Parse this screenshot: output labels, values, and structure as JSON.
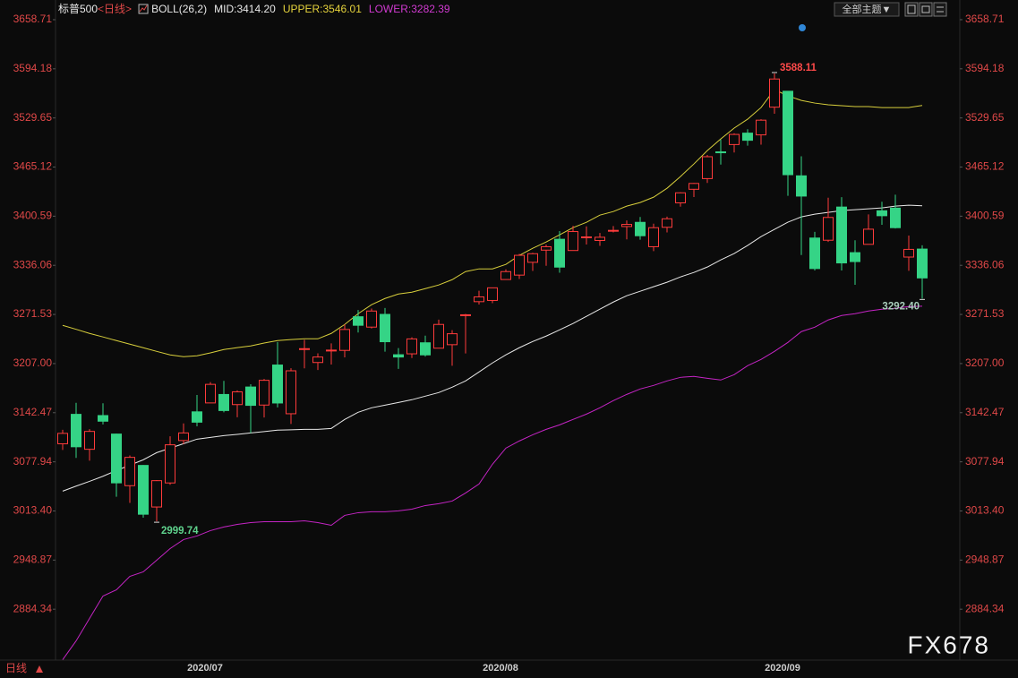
{
  "chart_data": {
    "type": "candlestick",
    "title": "标普500",
    "period": "<日线>",
    "indicator": "BOLL(26,2)",
    "theme_button": "全部主题▼",
    "period_button": "日线",
    "watermark": "FX678",
    "up_color": "#ff3b3b",
    "down_color": "#35d486",
    "categories": [
      null,
      null,
      null,
      null,
      null,
      null,
      null,
      null,
      null,
      "2020/07",
      null,
      null,
      null,
      null,
      null,
      null,
      null,
      null,
      null,
      null,
      null,
      null,
      null,
      null,
      null,
      null,
      null,
      null,
      null,
      null,
      null,
      "2020/08",
      null,
      null,
      null,
      null,
      null,
      null,
      null,
      null,
      null,
      null,
      null,
      null,
      null,
      null,
      null,
      null,
      null,
      null,
      null,
      null,
      "2020/09",
      null,
      null,
      null,
      null,
      null,
      null,
      null,
      null,
      null,
      null,
      null,
      null
    ],
    "candles": {
      "open": [
        3101.6,
        3140.3,
        3094.4,
        3138.7,
        3114.4,
        3046.6,
        3073.2,
        3018.6,
        3050.2,
        3105.9,
        3143.6,
        3155.3,
        3166.4,
        3153.1,
        3176.2,
        3152.5,
        3205.1,
        3141.1,
        3225.98,
        3208.4,
        3224.2,
        3224.3,
        3268.5,
        3254.9,
        3271.6,
        3218.6,
        3219.8,
        3234.3,
        3227.2,
        3231.8,
        3270.5,
        3288.3,
        3289.9,
        3317.4,
        3323.2,
        3340,
        3356,
        3370.3,
        3355.5,
        3372.9,
        3368.7,
        3380.9,
        3387,
        3392.5,
        3360.5,
        3386,
        3418.1,
        3435.95,
        3449.97,
        3485.1,
        3494.7,
        3509.7,
        3507.4,
        3543.8,
        3564.7,
        3453.6,
        3371.9,
        3369,
        3412.6,
        3352.7,
        3363.6,
        3407.7,
        3411.2,
        3346.9,
        3357.4
      ],
      "high": [
        3120,
        3155.5,
        3120.9,
        3154.9,
        3115,
        3086.3,
        3073.7,
        3053.9,
        3111.5,
        3128.4,
        3165.8,
        3182.6,
        3184.2,
        3171.8,
        3179.8,
        3186.8,
        3235.3,
        3200.9,
        3238.3,
        3220.4,
        3233.5,
        3258.6,
        3277.3,
        3279.3,
        3279.99,
        3227.3,
        3241.4,
        3243.7,
        3264.7,
        3250.9,
        3272.2,
        3302.7,
        3306.8,
        3330.8,
        3351,
        3352.5,
        3363.3,
        3381,
        3387.9,
        3387.2,
        3378.5,
        3387.6,
        3395,
        3399.5,
        3390.8,
        3399.96,
        3432.1,
        3444.2,
        3481.1,
        3501.4,
        3509.4,
        3514.8,
        3528,
        3588.11,
        3564.9,
        3479.2,
        3379.97,
        3424.8,
        3425.6,
        3368.95,
        3402.9,
        3419.5,
        3428.9,
        3375.2,
        3362.3
      ],
      "low": [
        3093.5,
        3083.1,
        3079.4,
        3127.1,
        3032.1,
        3024,
        3004.6,
        2999.74,
        3047.8,
        3101.2,
        3124.5,
        3155.3,
        3142.9,
        3136.5,
        3115.7,
        3136.2,
        3149.4,
        3127.7,
        3200.8,
        3198.6,
        3205.7,
        3215.2,
        3247.8,
        3253.1,
        3222.7,
        3200,
        3214.25,
        3216.2,
        3227.2,
        3204.1,
        3220.3,
        3284.5,
        3286.4,
        3317.4,
        3318.1,
        3328.7,
        3335.4,
        3326.4,
        3355.5,
        3363.4,
        3361.6,
        3379.2,
        3370.2,
        3369.7,
        3354.7,
        3379.3,
        3413.1,
        3425.8,
        3444.2,
        3468.4,
        3484.3,
        3493.3,
        3494.6,
        3535.2,
        3427.4,
        3349.6,
        3329.3,
        3366.8,
        3329.3,
        3310.5,
        3363.6,
        3389.25,
        3384.45,
        3328.8,
        3292.4
      ],
      "close": [
        3115.3,
        3097.7,
        3117.9,
        3131.3,
        3050.3,
        3083.8,
        3009.1,
        3053.2,
        3100.3,
        3115.9,
        3130,
        3179.7,
        3145.3,
        3169.9,
        3152.1,
        3185,
        3155.2,
        3197.5,
        3226.6,
        3215.6,
        3224.7,
        3251.8,
        3257.3,
        3276,
        3235.7,
        3215.6,
        3239.4,
        3218.4,
        3258.4,
        3246.2,
        3271.1,
        3294.6,
        3306.5,
        3327.8,
        3349.2,
        3351.3,
        3360.5,
        3333.7,
        3380.4,
        3373.4,
        3372.9,
        3381.99,
        3389.8,
        3374.9,
        3385.5,
        3397.2,
        3431.3,
        3443.6,
        3478.7,
        3484.6,
        3508,
        3500.3,
        3526.7,
        3580.8,
        3455.1,
        3427,
        3331.8,
        3398.96,
        3339.2,
        3340.97,
        3383.5,
        3401.2,
        3385.5,
        3357,
        3319.5
      ]
    },
    "series": [
      {
        "name": "MID:3414.20",
        "color": "#e8e8e8",
        "label_color": "#e8e8e8",
        "values": [
          3039.4,
          3046,
          3052.3,
          3059,
          3066.5,
          3073.5,
          3080.6,
          3090,
          3095.9,
          3101.8,
          3107.7,
          3110,
          3112.4,
          3114,
          3115.9,
          3117.7,
          3119.5,
          3120,
          3120.6,
          3120.6,
          3121.8,
          3133.6,
          3143,
          3148.9,
          3152.4,
          3155.9,
          3159.5,
          3164.2,
          3168.9,
          3176,
          3184.2,
          3196,
          3207.8,
          3218.4,
          3227.8,
          3236,
          3243.1,
          3251.3,
          3259.6,
          3269,
          3278.4,
          3287.8,
          3296.1,
          3302,
          3307.9,
          3313.8,
          3320.8,
          3326.7,
          3333.8,
          3343.2,
          3351.5,
          3362.1,
          3373.8,
          3383.3,
          3392.7,
          3399.7,
          3403.2,
          3405.6,
          3408,
          3409.1,
          3410.3,
          3411.5,
          3413.8,
          3415,
          3414.2
        ]
      },
      {
        "name": "UPPER:3546.01",
        "color": "#d8cf3c",
        "label_color": "#e6d33c",
        "values": [
          3257.2,
          3252,
          3246.6,
          3242,
          3237.2,
          3232.5,
          3227.8,
          3223,
          3218.4,
          3216,
          3217.2,
          3221,
          3225.4,
          3228,
          3230.1,
          3234,
          3237.2,
          3238.5,
          3239.5,
          3239.5,
          3246.6,
          3258.4,
          3272.5,
          3284.3,
          3292.5,
          3298.4,
          3300.7,
          3305.4,
          3310.2,
          3317.2,
          3327.8,
          3331.4,
          3331.4,
          3337.3,
          3349,
          3358.5,
          3366.7,
          3376.1,
          3385.5,
          3392.6,
          3402,
          3406.7,
          3413.8,
          3418.5,
          3425.6,
          3437.3,
          3452.7,
          3469.2,
          3486.8,
          3502.1,
          3516.3,
          3528,
          3543.3,
          3566.9,
          3558.6,
          3552.7,
          3549.2,
          3546.9,
          3545.7,
          3544.5,
          3544.5,
          3543.3,
          3543.3,
          3543.3,
          3546.01
        ]
      },
      {
        "name": "LOWER:3282.39",
        "color": "#c424c4",
        "label_color": "#d03ad0",
        "values": [
          2818,
          2842.7,
          2872.2,
          2901.6,
          2909.8,
          2927.5,
          2933.4,
          2948.7,
          2964,
          2975.8,
          2980.5,
          2987.6,
          2992.3,
          2995.8,
          2998.1,
          2999.3,
          2999.3,
          2999.3,
          3000.5,
          2998.1,
          2994.6,
          3007.6,
          3011.1,
          3012.3,
          3012.3,
          3013.5,
          3015.8,
          3020.5,
          3022.9,
          3026.4,
          3037,
          3048.8,
          3074.7,
          3095.9,
          3105.3,
          3113.5,
          3120.6,
          3126.5,
          3133.6,
          3140.6,
          3148.9,
          3158.3,
          3166.5,
          3173.6,
          3178.3,
          3184.2,
          3188.9,
          3190.1,
          3187.7,
          3185.4,
          3192.4,
          3204.2,
          3212.4,
          3223,
          3234.8,
          3249,
          3254.8,
          3264.3,
          3270.1,
          3272.5,
          3276,
          3278.4,
          3279.6,
          3281.9,
          3282.39
        ]
      }
    ],
    "annotations": [
      {
        "value": 3588.11,
        "label": "3588.11",
        "color": "#ff4a4a"
      },
      {
        "value": 2999.74,
        "label": "2999.74",
        "color": "#5fd38d"
      },
      {
        "value": 3292.4,
        "label": "3292.40",
        "color": "#a9cdbb"
      }
    ],
    "ylim": [
      2817.5,
      3672.8
    ],
    "yticks": [
      {
        "value": 2884.34,
        "label": "2884.34"
      },
      2948.87,
      {
        "value": 3013.4,
        "label": "3013.40"
      },
      3077.94,
      3142.47,
      {
        "value": 3207,
        "label": "3207.00"
      },
      3271.53,
      3336.06,
      3400.59,
      3465.12,
      3529.65,
      3594.18,
      3658.71
    ]
  }
}
